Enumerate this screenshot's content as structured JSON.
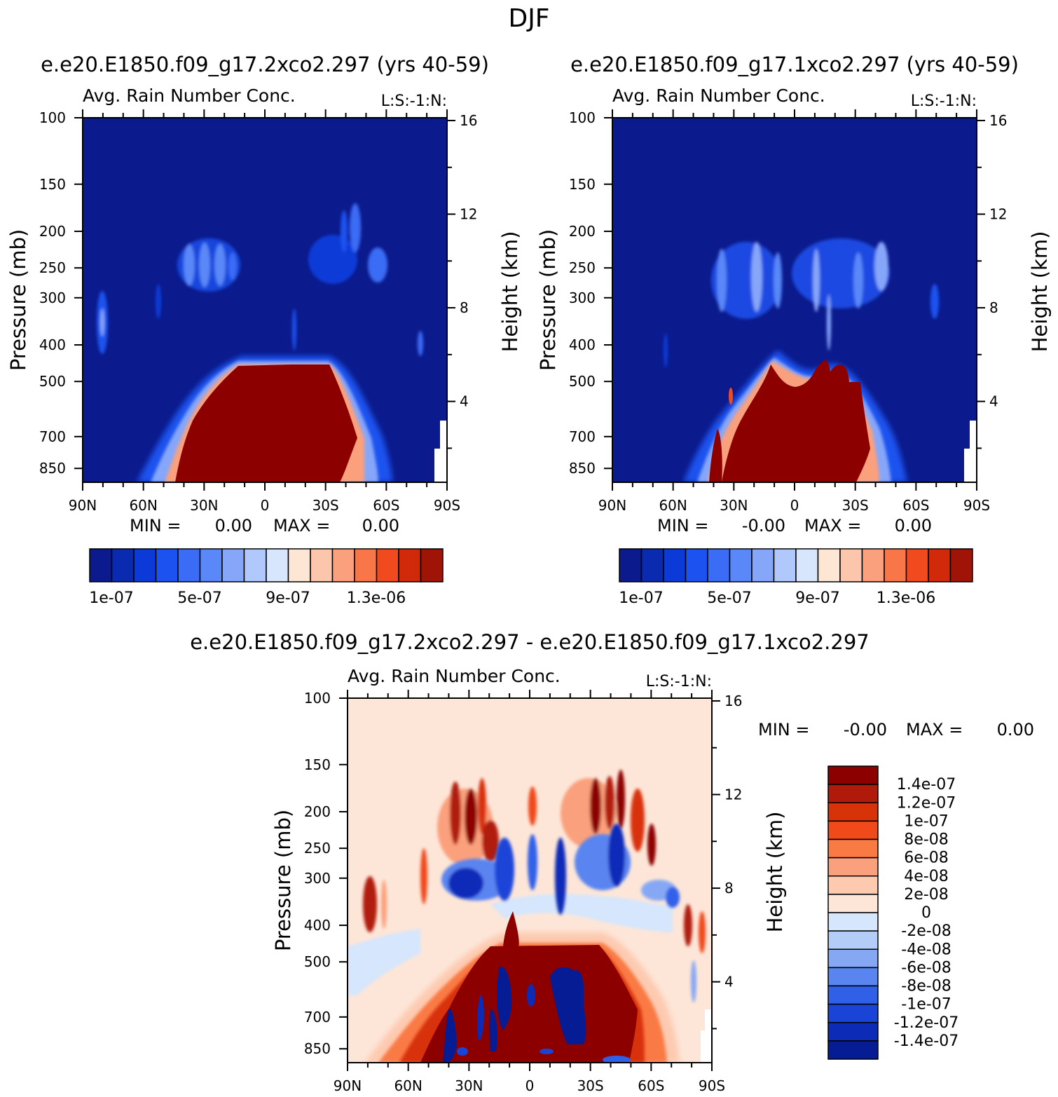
{
  "title": "DJF",
  "chart_data": [
    {
      "id": "panel1",
      "type": "heatmap",
      "run_title": "e.e20.E1850.f09_g17.2xco2.297 (yrs 40-59)",
      "title": "Avg. Rain Number Conc.",
      "corner_label": "L:S:-1:N:",
      "xlabel": "",
      "ylabel": "Pressure (mb)",
      "y2label": "Height (km)",
      "x_ticks": [
        "90N",
        "60N",
        "30N",
        "0",
        "30S",
        "60S",
        "90S"
      ],
      "y_ticks": [
        "100",
        "150",
        "200",
        "250",
        "300",
        "400",
        "500",
        "700",
        "850"
      ],
      "y2_ticks": [
        "16",
        "12",
        "8",
        "4"
      ],
      "stats": {
        "min_label": "MIN =",
        "min_value": "0.00",
        "max_label": "MAX =",
        "max_value": "0.00"
      },
      "colorbar": {
        "labels": [
          "1e-07",
          "5e-07",
          "9e-07",
          "1.3e-06"
        ],
        "levels": [
          1e-07,
          2e-07,
          3e-07,
          4e-07,
          5e-07,
          6e-07,
          7e-07,
          8e-07,
          9e-07,
          1e-06,
          1.1e-06,
          1.2e-06,
          1.3e-06,
          1.4e-06,
          1.5e-06
        ]
      }
    },
    {
      "id": "panel2",
      "type": "heatmap",
      "run_title": "e.e20.E1850.f09_g17.1xco2.297 (yrs 40-59)",
      "title": "Avg. Rain Number Conc.",
      "corner_label": "L:S:-1:N:",
      "xlabel": "",
      "ylabel": "Pressure (mb)",
      "y2label": "Height (km)",
      "x_ticks": [
        "90N",
        "60N",
        "30N",
        "0",
        "30S",
        "60S",
        "90S"
      ],
      "y_ticks": [
        "100",
        "150",
        "200",
        "250",
        "300",
        "400",
        "500",
        "700",
        "850"
      ],
      "y2_ticks": [
        "16",
        "12",
        "8",
        "4"
      ],
      "stats": {
        "min_label": "MIN =",
        "min_value": "-0.00",
        "max_label": "MAX =",
        "max_value": "0.00"
      },
      "colorbar": {
        "labels": [
          "1e-07",
          "5e-07",
          "9e-07",
          "1.3e-06"
        ],
        "levels": [
          1e-07,
          2e-07,
          3e-07,
          4e-07,
          5e-07,
          6e-07,
          7e-07,
          8e-07,
          9e-07,
          1e-06,
          1.1e-06,
          1.2e-06,
          1.3e-06,
          1.4e-06,
          1.5e-06
        ]
      }
    },
    {
      "id": "panel3",
      "type": "heatmap",
      "run_title": "e.e20.E1850.f09_g17.2xco2.297 - e.e20.E1850.f09_g17.1xco2.297",
      "title": "Avg. Rain Number Conc.",
      "corner_label": "L:S:-1:N:",
      "xlabel": "",
      "ylabel": "Pressure (mb)",
      "y2label": "Height (km)",
      "x_ticks": [
        "90N",
        "60N",
        "30N",
        "0",
        "30S",
        "60S",
        "90S"
      ],
      "y_ticks": [
        "100",
        "150",
        "200",
        "250",
        "300",
        "400",
        "500",
        "700",
        "850"
      ],
      "y2_ticks": [
        "16",
        "12",
        "8",
        "4"
      ],
      "stats": {
        "min_label": "MIN =",
        "min_value": "-0.00",
        "max_label": "MAX =",
        "max_value": "0.00"
      },
      "colorbar": {
        "labels": [
          "1.4e-07",
          "1.2e-07",
          "1e-07",
          "8e-08",
          "6e-08",
          "4e-08",
          "2e-08",
          "0",
          "-2e-08",
          "-4e-08",
          "-6e-08",
          "-8e-08",
          "-1e-07",
          "-1.2e-07",
          "-1.4e-07"
        ]
      }
    }
  ],
  "colors": {
    "seq": [
      "#0b1a8c",
      "#0a2ab0",
      "#0c3ad8",
      "#1c52f0",
      "#3a6cf6",
      "#5a88f8",
      "#86a6fa",
      "#b0c8fc",
      "#d8e6fd",
      "#fde6d4",
      "#fcc6ac",
      "#fba07c",
      "#f87648",
      "#f04a1e",
      "#d02a0a",
      "#a01408",
      "#8c0000"
    ],
    "div": [
      "#8c0000",
      "#b01a0a",
      "#d83208",
      "#f04a1a",
      "#fa7a44",
      "#fba07c",
      "#fdcab0",
      "#fde6d8",
      "#d6e6fc",
      "#b4ccf8",
      "#86a8f4",
      "#5a84f0",
      "#3060e8",
      "#1a44d8",
      "#0c2cb8",
      "#061c94"
    ]
  }
}
